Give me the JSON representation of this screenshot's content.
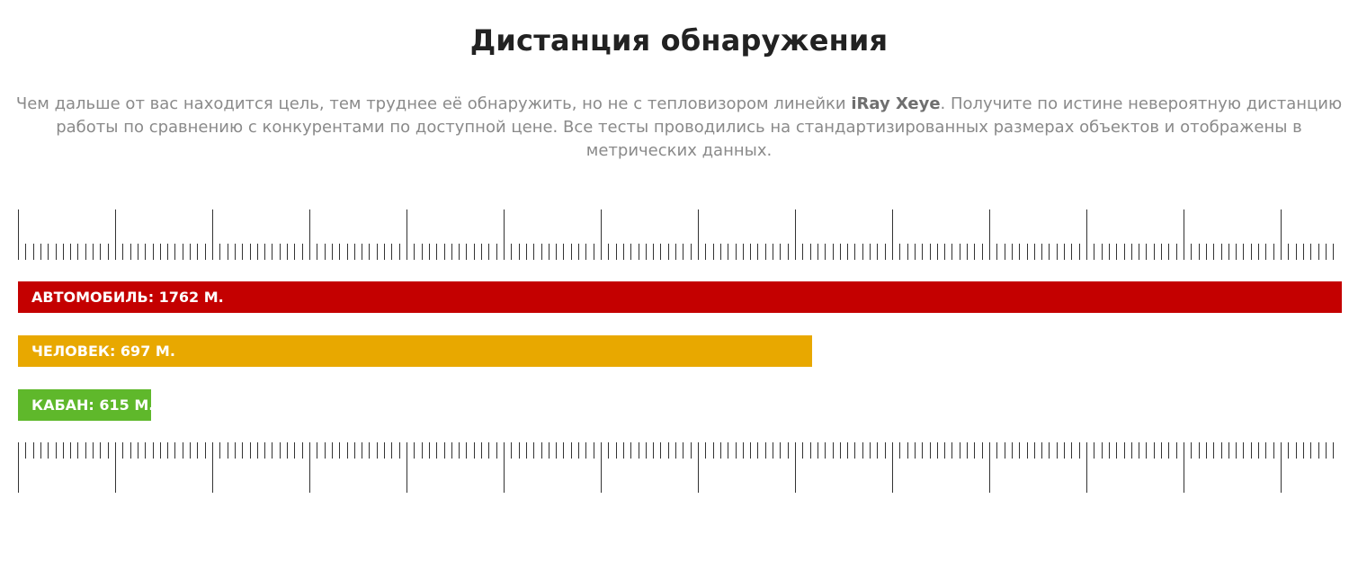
{
  "section": {
    "title": "Дистанция обнаружения",
    "description": {
      "before": "Чем дальше от вас находится цель, тем труднее её обнаружить, но не с тепловизором линейки ",
      "highlight": "iRay Xeye",
      "after": ". Получите по истине невероятную дистанцию работы по сравнению с конкурентами по доступной цене. Все тесты проводились на стандартизированных размерах объектов и отображены в метрических данных."
    }
  },
  "bars": [
    {
      "label": "АВТОМОБИЛЬ: 1762 М.",
      "value": 1762,
      "color": "#c40000"
    },
    {
      "label": "ЧЕЛОВЕК: 697 М.",
      "value": 697,
      "color": "#e8a800"
    },
    {
      "label": "КАБАН: 615 М.",
      "value": 615,
      "color": "#5fb82b"
    }
  ],
  "ruler": {
    "color": "#333333"
  }
}
